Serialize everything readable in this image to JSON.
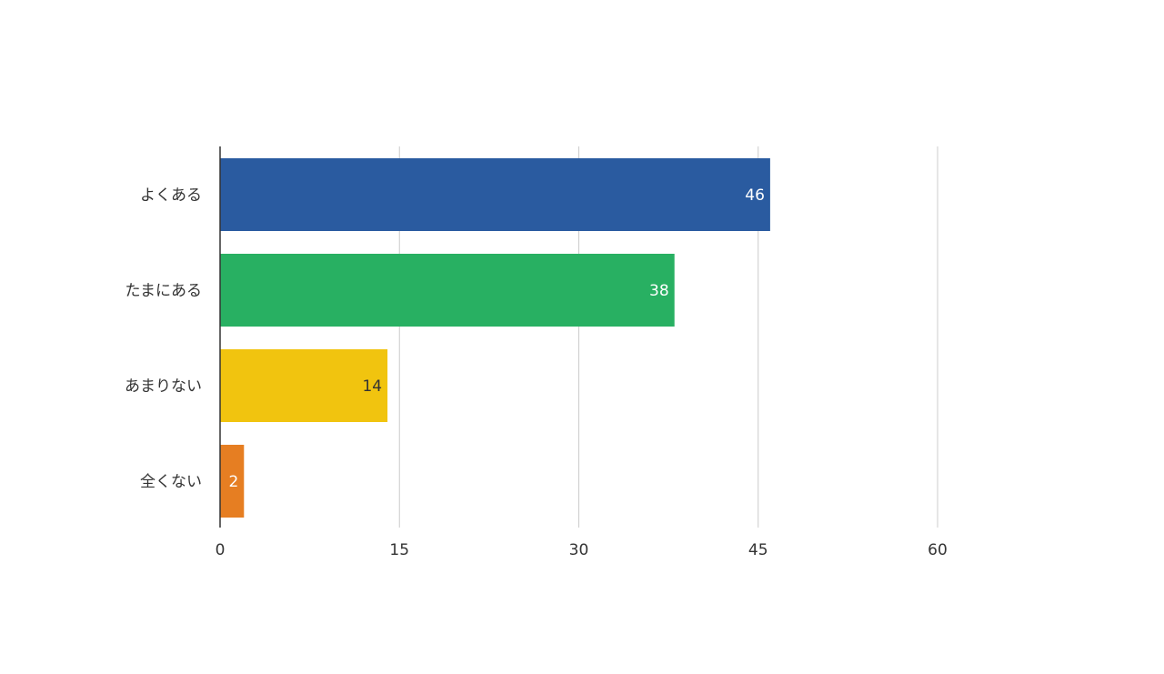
{
  "chart_data": {
    "type": "bar",
    "orientation": "horizontal",
    "categories": [
      "よくある",
      "たまにある",
      "あまりない",
      "全くない"
    ],
    "values": [
      46,
      38,
      14,
      2
    ],
    "colors": [
      "#2a5ba0",
      "#28b062",
      "#f1c40f",
      "#e67e22"
    ],
    "value_label_colors": [
      "#ffffff",
      "#ffffff",
      "#333333",
      "#ffffff"
    ],
    "xlim": [
      0,
      60
    ],
    "xticks": [
      0,
      15,
      30,
      45,
      60
    ],
    "grid": true,
    "title": "",
    "xlabel": "",
    "ylabel": ""
  }
}
